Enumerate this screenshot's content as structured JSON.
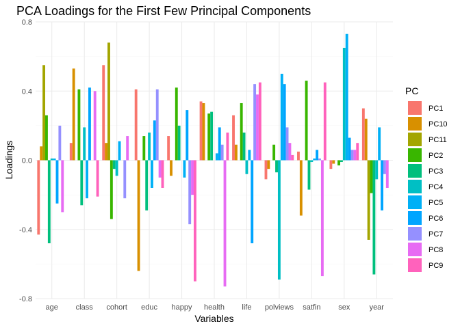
{
  "chart_data": {
    "type": "bar",
    "title": "PCA Loadings for the First Few Principal Components",
    "xlabel": "Variables",
    "ylabel": "Loadings",
    "ylim": [
      -0.8,
      0.8
    ],
    "yticks": [
      -0.8,
      -0.4,
      0.0,
      0.4,
      0.8
    ],
    "ytick_labels": [
      "-0.8",
      "-0.4",
      "0.0",
      "0.4",
      "0.8"
    ],
    "grid": true,
    "legend_position": "right",
    "legend_title": "PC",
    "categories": [
      "age",
      "class",
      "cohort",
      "educ",
      "happy",
      "health",
      "life",
      "polviews",
      "satfin",
      "sex",
      "year"
    ],
    "series": [
      {
        "name": "PC1",
        "color": "#F8766D",
        "values": [
          -0.43,
          0.1,
          0.55,
          0.41,
          0.14,
          0.34,
          0.26,
          -0.11,
          0.05,
          -0.05,
          0.3
        ]
      },
      {
        "name": "PC10",
        "color": "#D89000",
        "values": [
          0.08,
          0.53,
          0.1,
          -0.64,
          -0.09,
          0.33,
          0.09,
          -0.05,
          -0.32,
          -0.02,
          0.24
        ]
      },
      {
        "name": "PC11",
        "color": "#A3A500",
        "values": [
          0.55,
          0.0,
          0.68,
          0.0,
          0.0,
          0.0,
          0.0,
          0.0,
          0.0,
          0.0,
          -0.46
        ]
      },
      {
        "name": "PC2",
        "color": "#39B600",
        "values": [
          0.26,
          0.41,
          -0.34,
          0.14,
          0.42,
          0.27,
          0.33,
          0.09,
          0.46,
          -0.03,
          -0.19
        ]
      },
      {
        "name": "PC3",
        "color": "#00BF7D",
        "values": [
          -0.48,
          -0.26,
          -0.05,
          -0.29,
          0.2,
          0.28,
          0.16,
          -0.07,
          -0.17,
          -0.01,
          -0.66
        ]
      },
      {
        "name": "PC4",
        "color": "#00BFC4",
        "values": [
          0.01,
          0.19,
          -0.09,
          0.16,
          0.0,
          0.0,
          -0.08,
          -0.69,
          -0.01,
          0.65,
          -0.11
        ]
      },
      {
        "name": "PC5",
        "color": "#00B0F6",
        "values": [
          0.01,
          -0.22,
          0.11,
          -0.16,
          -0.1,
          0.04,
          0.06,
          0.5,
          0.01,
          0.73,
          0.19
        ]
      },
      {
        "name": "PC6",
        "color": "#00A5FF",
        "values": [
          -0.25,
          0.42,
          0.0,
          0.23,
          0.29,
          0.19,
          -0.48,
          0.44,
          0.06,
          0.13,
          -0.29
        ]
      },
      {
        "name": "PC7",
        "color": "#9590FF",
        "values": [
          0.2,
          0.0,
          -0.22,
          0.41,
          -0.37,
          0.09,
          0.44,
          0.19,
          0.01,
          0.06,
          -0.08
        ]
      },
      {
        "name": "PC8",
        "color": "#E76BF3",
        "values": [
          -0.3,
          0.4,
          0.14,
          -0.1,
          -0.2,
          -0.73,
          0.38,
          0.1,
          -0.67,
          0.06,
          -0.16
        ]
      },
      {
        "name": "PC9",
        "color": "#FF62BC",
        "values": [
          0.0,
          -0.21,
          0.0,
          -0.16,
          -0.7,
          0.16,
          0.45,
          0.03,
          0.45,
          0.1,
          0.0
        ]
      }
    ]
  }
}
